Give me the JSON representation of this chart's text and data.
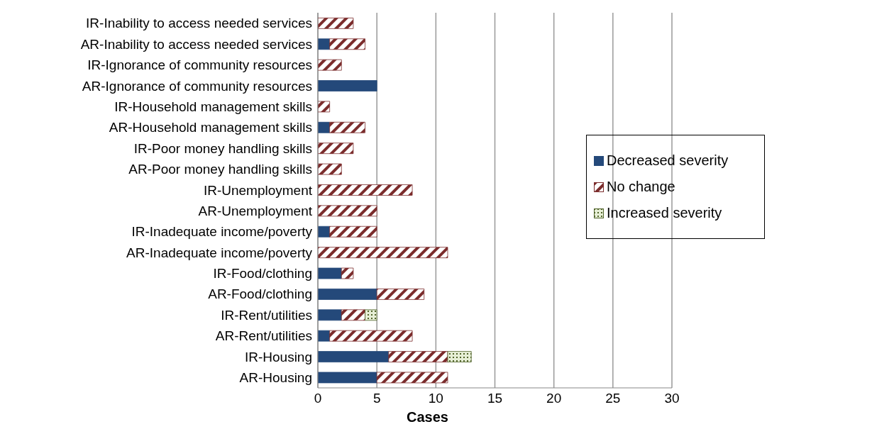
{
  "chart_data": {
    "type": "bar",
    "orientation": "horizontal",
    "stacked": true,
    "xlabel": "Cases",
    "categories": [
      "IR-Inability to access needed services",
      "AR-Inability to access needed services",
      "IR-Ignorance of community resources",
      "AR-Ignorance of community resources",
      "IR-Household management skills",
      "AR-Household management skills",
      "IR-Poor money handling skills",
      "AR-Poor money handling skills",
      "IR-Unemployment",
      "AR-Unemployment",
      "IR-Inadequate income/poverty",
      "AR-Inadequate income/poverty",
      "IR-Food/clothing",
      "AR-Food/clothing",
      "IR-Rent/utilities",
      "AR-Rent/utilities",
      "IR-Housing",
      "AR-Housing"
    ],
    "series": [
      {
        "name": "Decreased severity",
        "color": "#24497a",
        "values": [
          0,
          1,
          0,
          5,
          0,
          1,
          0,
          0,
          0,
          0,
          1,
          0,
          2,
          5,
          2,
          1,
          6,
          5
        ]
      },
      {
        "name": "No change",
        "color": "#7b2c2c",
        "values": [
          3,
          3,
          2,
          0,
          1,
          3,
          3,
          2,
          8,
          5,
          4,
          11,
          1,
          4,
          2,
          7,
          5,
          6
        ]
      },
      {
        "name": "Increased severity",
        "color": "#4f6228",
        "values": [
          0,
          0,
          0,
          0,
          0,
          0,
          0,
          0,
          0,
          0,
          0,
          0,
          0,
          0,
          1,
          0,
          2,
          0
        ]
      }
    ],
    "xlim": [
      0,
      30
    ],
    "xticks": [
      0,
      5,
      10,
      15,
      20,
      25,
      30
    ],
    "grid": "x",
    "legend": "right"
  }
}
